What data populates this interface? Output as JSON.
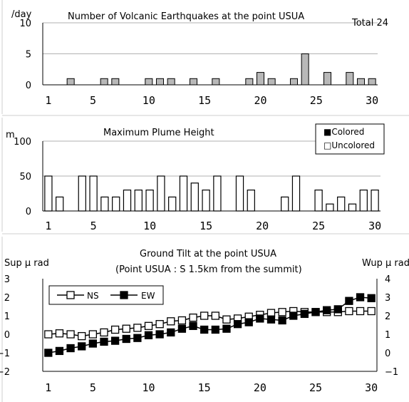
{
  "chart_data": [
    {
      "type": "bar",
      "title": "Number of Volcanic Earthquakes at the point USUA",
      "total_label": "Total 24",
      "ylabel": "/day",
      "ylim": [
        0,
        10
      ],
      "yticks": [
        "0",
        "5",
        "10"
      ],
      "xticks": [
        "1",
        "5",
        "10",
        "15",
        "20",
        "25",
        "30"
      ],
      "x": [
        1,
        2,
        3,
        4,
        5,
        6,
        7,
        8,
        9,
        10,
        11,
        12,
        13,
        14,
        15,
        16,
        17,
        18,
        19,
        20,
        21,
        22,
        23,
        24,
        25,
        26,
        27,
        28,
        29,
        30
      ],
      "values": [
        0,
        0,
        1,
        0,
        0,
        1,
        1,
        0,
        0,
        1,
        1,
        1,
        0,
        1,
        0,
        1,
        0,
        0,
        1,
        2,
        1,
        0,
        1,
        5,
        0,
        2,
        0,
        2,
        1,
        1
      ],
      "bar_color": "#b8b8b8"
    },
    {
      "type": "bar",
      "title": "Maximum Plume Height",
      "ylabel": "m",
      "ylim": [
        0,
        100
      ],
      "yticks": [
        "0",
        "50",
        "100"
      ],
      "xticks": [
        "1",
        "5",
        "10",
        "15",
        "20",
        "25",
        "30"
      ],
      "legend": [
        "■Colored",
        "□Uncolored"
      ],
      "legend_position": "top-right",
      "x": [
        1,
        2,
        3,
        4,
        5,
        6,
        7,
        8,
        9,
        10,
        11,
        12,
        13,
        14,
        15,
        16,
        17,
        18,
        19,
        20,
        21,
        22,
        23,
        24,
        25,
        26,
        27,
        28,
        29,
        30
      ],
      "series": [
        {
          "name": "Uncolored",
          "values": [
            50,
            20,
            0,
            50,
            50,
            20,
            20,
            30,
            30,
            30,
            50,
            20,
            50,
            40,
            30,
            50,
            0,
            50,
            30,
            0,
            0,
            20,
            50,
            0,
            30,
            10,
            20,
            10,
            30,
            30
          ]
        },
        {
          "name": "Colored",
          "values": [
            0,
            0,
            0,
            0,
            0,
            0,
            0,
            0,
            0,
            0,
            0,
            0,
            0,
            0,
            0,
            0,
            0,
            0,
            0,
            0,
            0,
            0,
            0,
            0,
            0,
            0,
            0,
            0,
            0,
            0
          ]
        }
      ]
    },
    {
      "type": "line",
      "title": "Ground Tilt at the point USUA",
      "subtitle": "(Point USUA : S 1.5km from the summit)",
      "ylabel": "Sup μ rad",
      "y2label": "Wup μ rad",
      "ylim": [
        -2,
        3
      ],
      "y2lim": [
        -1,
        4
      ],
      "yticks": [
        "−2",
        "−1",
        "0",
        "1",
        "2",
        "3"
      ],
      "y2ticks": [
        "−1",
        "0",
        "1",
        "2",
        "3",
        "4"
      ],
      "xticks": [
        "1",
        "5",
        "10",
        "15",
        "20",
        "25",
        "30"
      ],
      "legend_position": "top-left",
      "x": [
        1,
        2,
        3,
        4,
        5,
        6,
        7,
        8,
        9,
        10,
        11,
        12,
        13,
        14,
        15,
        16,
        17,
        18,
        19,
        20,
        21,
        22,
        23,
        24,
        25,
        26,
        27,
        28,
        29,
        30
      ],
      "series": [
        {
          "name": "NS",
          "axis": "left",
          "values": [
            0,
            0.05,
            0,
            -0.1,
            0,
            0.1,
            0.25,
            0.3,
            0.35,
            0.45,
            0.55,
            0.7,
            0.75,
            0.9,
            1,
            1,
            0.8,
            0.85,
            0.95,
            1.05,
            1.15,
            1.2,
            1.25,
            1.2,
            1.2,
            1.2,
            1.2,
            1.25,
            1.25,
            1.25
          ]
        },
        {
          "name": "EW",
          "axis": "right",
          "values": [
            0,
            0.1,
            0.25,
            0.35,
            0.5,
            0.6,
            0.65,
            0.75,
            0.8,
            0.95,
            1,
            1.1,
            1.3,
            1.45,
            1.25,
            1.25,
            1.3,
            1.55,
            1.65,
            1.85,
            1.8,
            1.75,
            2,
            2.1,
            2.2,
            2.3,
            2.35,
            2.8,
            3,
            2.95
          ]
        }
      ]
    }
  ]
}
